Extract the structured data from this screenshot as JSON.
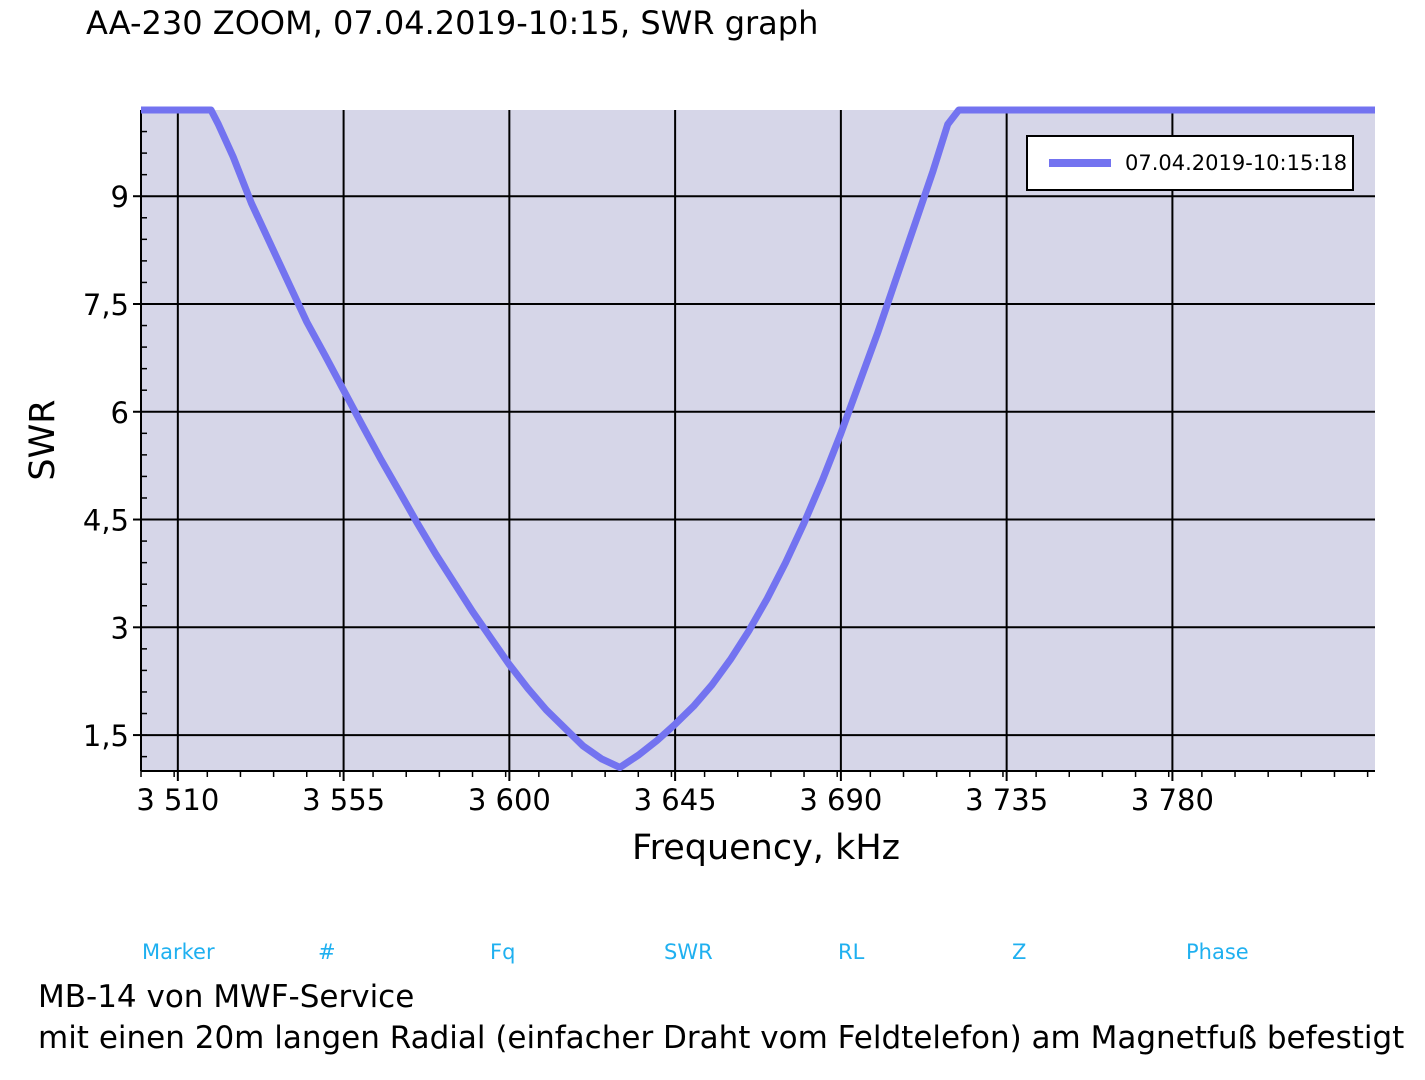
{
  "title": "AA-230 ZOOM, 07.04.2019-10:15, SWR graph",
  "chart_data": {
    "type": "line",
    "xlabel": "Frequency, kHz",
    "ylabel": "SWR",
    "xlim": [
      3500,
      3835
    ],
    "ylim": [
      1.0,
      10.2
    ],
    "x_ticks": [
      3510,
      3555,
      3600,
      3645,
      3690,
      3735,
      3780
    ],
    "x_tick_labels": [
      "3 510",
      "3 555",
      "3 600",
      "3 645",
      "3 690",
      "3 735",
      "3 780"
    ],
    "y_ticks": [
      1.5,
      3,
      4.5,
      6,
      7.5,
      9
    ],
    "y_tick_labels": [
      "1,5",
      "3",
      "4,5",
      "6",
      "7,5",
      "9"
    ],
    "grid": true,
    "legend_position": "top-right",
    "colors": {
      "series": "#7373f0",
      "plot_bg": "#d6d6e8",
      "grid": "#000000"
    },
    "series": [
      {
        "name": "07.04.2019-10:15:18",
        "x": [
          3500,
          3519,
          3521,
          3525,
          3530,
          3535,
          3540,
          3545,
          3550,
          3555,
          3560,
          3565,
          3570,
          3575,
          3580,
          3585,
          3590,
          3595,
          3600,
          3605,
          3610,
          3615,
          3620,
          3625,
          3630,
          3635,
          3640,
          3645,
          3650,
          3655,
          3660,
          3665,
          3670,
          3675,
          3680,
          3685,
          3690,
          3695,
          3700,
          3705,
          3710,
          3715,
          3719,
          3722,
          3835
        ],
        "y": [
          10.2,
          10.2,
          10.0,
          9.55,
          8.9,
          8.35,
          7.8,
          7.25,
          6.78,
          6.3,
          5.82,
          5.35,
          4.9,
          4.45,
          4.02,
          3.62,
          3.22,
          2.85,
          2.48,
          2.15,
          1.85,
          1.6,
          1.35,
          1.17,
          1.05,
          1.22,
          1.42,
          1.65,
          1.9,
          2.2,
          2.55,
          2.95,
          3.4,
          3.9,
          4.45,
          5.05,
          5.7,
          6.4,
          7.1,
          7.85,
          8.6,
          9.35,
          10.0,
          10.2,
          10.2
        ]
      }
    ]
  },
  "marker_table": {
    "headers": [
      "Marker",
      "#",
      "Fq",
      "SWR",
      "RL",
      "Z",
      "Phase"
    ]
  },
  "notes": {
    "line1": "MB-14 von MWF-Service",
    "line2": "mit einen 20m langen Radial (einfacher Draht vom Feldtelefon) am Magnetfuß befestigt"
  }
}
